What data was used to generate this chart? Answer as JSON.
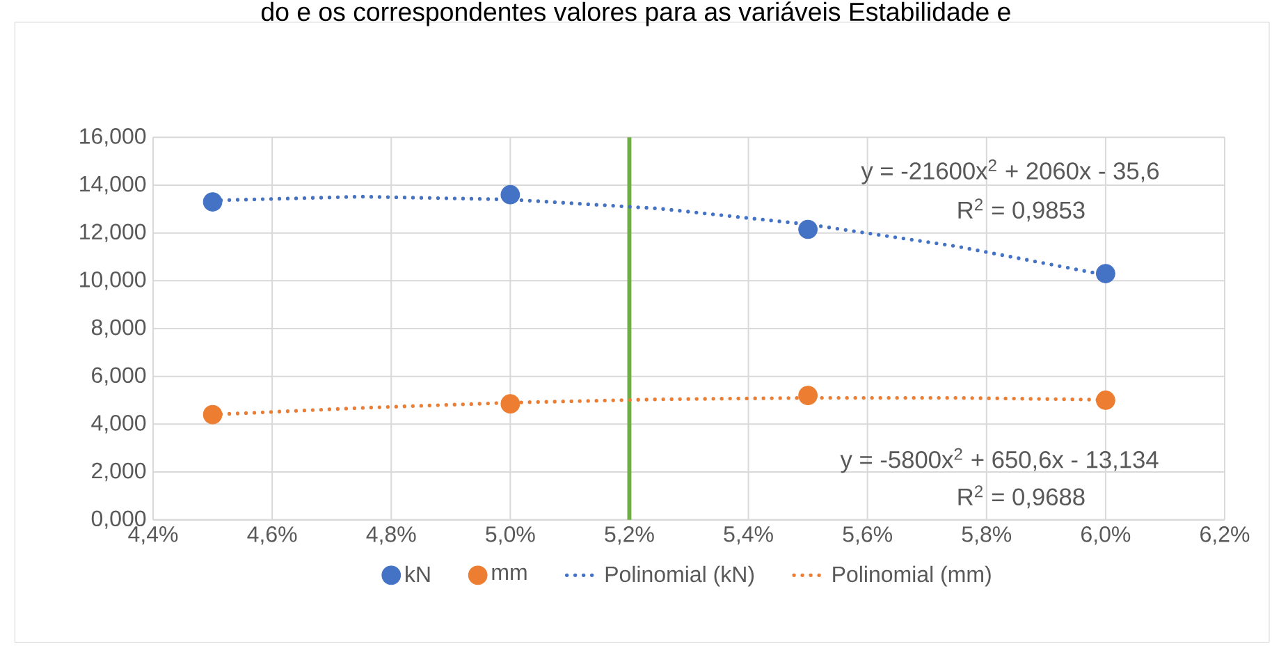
{
  "chart_data": {
    "type": "scatter",
    "title": "do e os correspondentes valores para as variáveis Estabilidade e",
    "xlim": [
      0.044,
      0.062
    ],
    "xticks": [
      {
        "value": 0.044,
        "label": "4,4%"
      },
      {
        "value": 0.046,
        "label": "4,6%"
      },
      {
        "value": 0.048,
        "label": "4,8%"
      },
      {
        "value": 0.05,
        "label": "5,0%"
      },
      {
        "value": 0.052,
        "label": "5,2%"
      },
      {
        "value": 0.054,
        "label": "5,4%"
      },
      {
        "value": 0.056,
        "label": "5,6%"
      },
      {
        "value": 0.058,
        "label": "5,8%"
      },
      {
        "value": 0.06,
        "label": "6,0%"
      },
      {
        "value": 0.062,
        "label": "6,2%"
      }
    ],
    "ylim": [
      0,
      16
    ],
    "yticks": [
      {
        "value": 0,
        "label": "0,000"
      },
      {
        "value": 2,
        "label": "2,000"
      },
      {
        "value": 4,
        "label": "4,000"
      },
      {
        "value": 6,
        "label": "6,000"
      },
      {
        "value": 8,
        "label": "8,000"
      },
      {
        "value": 10,
        "label": "10,000"
      },
      {
        "value": 12,
        "label": "12,000"
      },
      {
        "value": 14,
        "label": "14,000"
      },
      {
        "value": 16,
        "label": "16,000"
      }
    ],
    "grid": true,
    "legend": "bottom",
    "series": [
      {
        "name": "kN",
        "color": "#4472c4",
        "marker": "circle",
        "x": [
          0.045,
          0.05,
          0.055,
          0.06
        ],
        "values": [
          13.3,
          13.6,
          12.15,
          10.3
        ]
      },
      {
        "name": "mm",
        "color": "#ed7d31",
        "marker": "circle",
        "x": [
          0.045,
          0.05,
          0.055,
          0.06
        ],
        "values": [
          4.4,
          4.85,
          5.2,
          5.0
        ]
      },
      {
        "name": "Polinomial (kN)",
        "color": "#4472c4",
        "type": "line",
        "line_style": "dotted",
        "marker": "none",
        "x": [
          0.045,
          0.0475,
          0.05,
          0.0525,
          0.055,
          0.0575,
          0.06
        ],
        "values": [
          13.36,
          13.52,
          13.4,
          13.02,
          12.36,
          11.44,
          10.24
        ]
      },
      {
        "name": "Polinomial (mm)",
        "color": "#ed7d31",
        "type": "line",
        "line_style": "dotted",
        "marker": "none",
        "x": [
          0.045,
          0.0475,
          0.05,
          0.0525,
          0.055,
          0.0575,
          0.06
        ],
        "values": [
          4.4,
          4.68,
          4.9,
          5.04,
          5.1,
          5.1,
          5.02
        ]
      }
    ],
    "ref_lines": [
      {
        "axis": "x",
        "value": 0.052,
        "color": "#70ad47"
      }
    ],
    "annotations": [
      "y = -21600x$^{2}$ + 2060x - 35,6",
      "R$^{2}$ = 0,9853",
      "y = -5800x$^{2}$ + 650,6x - 13,134",
      "R$^{2}$ = 0,9688"
    ]
  }
}
